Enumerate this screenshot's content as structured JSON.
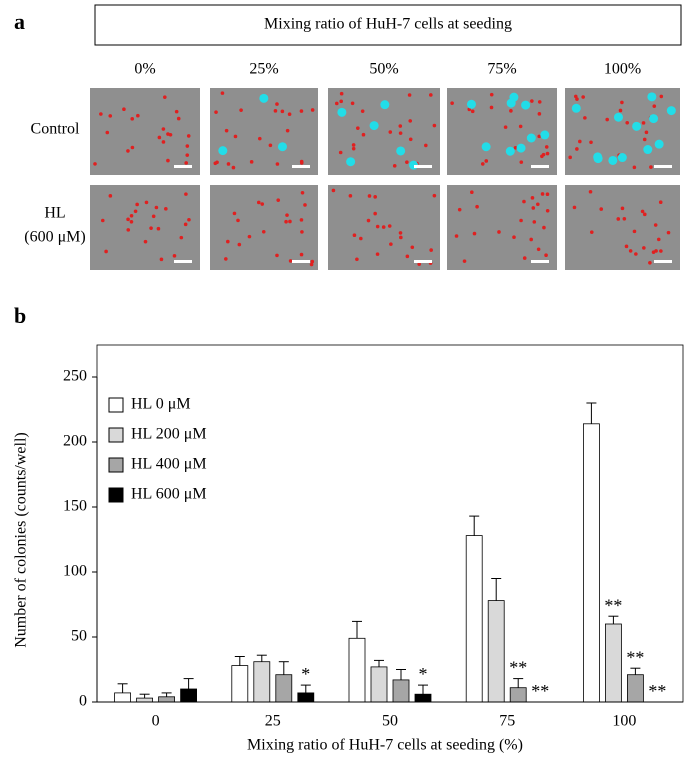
{
  "panel_a": {
    "label": "a",
    "header": "Mixing ratio of HuH-7 cells at seeding",
    "columns": [
      "0%",
      "25%",
      "50%",
      "75%",
      "100%"
    ],
    "rows": [
      [
        "Control"
      ],
      [
        "HL",
        "(600 μM)"
      ]
    ]
  },
  "chart_data": {
    "type": "bar",
    "label": "b",
    "x_label": "Mixing ratio of HuH-7 cells at seeding (%)",
    "y_label": "Number of colonies (counts/well)",
    "categories": [
      "0",
      "25",
      "50",
      "75",
      "100"
    ],
    "ylim": [
      0,
      250
    ],
    "yticks": [
      0,
      50,
      100,
      150,
      200,
      250
    ],
    "legend": "upper-left",
    "series": [
      {
        "name": "HL 0 μM",
        "color": "#ffffff",
        "values": [
          7,
          28,
          49,
          128,
          214
        ],
        "errors": [
          7,
          7,
          13,
          15,
          16
        ],
        "significance": [
          null,
          null,
          null,
          null,
          null
        ]
      },
      {
        "name": "HL 200 μM",
        "color": "#d9d9d9",
        "values": [
          3,
          31,
          27,
          78,
          60
        ],
        "errors": [
          3,
          5,
          5,
          17,
          6
        ],
        "significance": [
          null,
          null,
          null,
          null,
          "**"
        ]
      },
      {
        "name": "HL 400 μM",
        "color": "#a6a6a6",
        "values": [
          4,
          21,
          17,
          11,
          21
        ],
        "errors": [
          3,
          10,
          8,
          7,
          5
        ],
        "significance": [
          null,
          null,
          null,
          "**",
          "**"
        ]
      },
      {
        "name": "HL 600 μM",
        "color": "#000000",
        "values": [
          10,
          7,
          6,
          0,
          0
        ],
        "errors": [
          8,
          6,
          7,
          0,
          0
        ],
        "significance": [
          null,
          "*",
          "*",
          "**",
          "**"
        ]
      }
    ]
  }
}
